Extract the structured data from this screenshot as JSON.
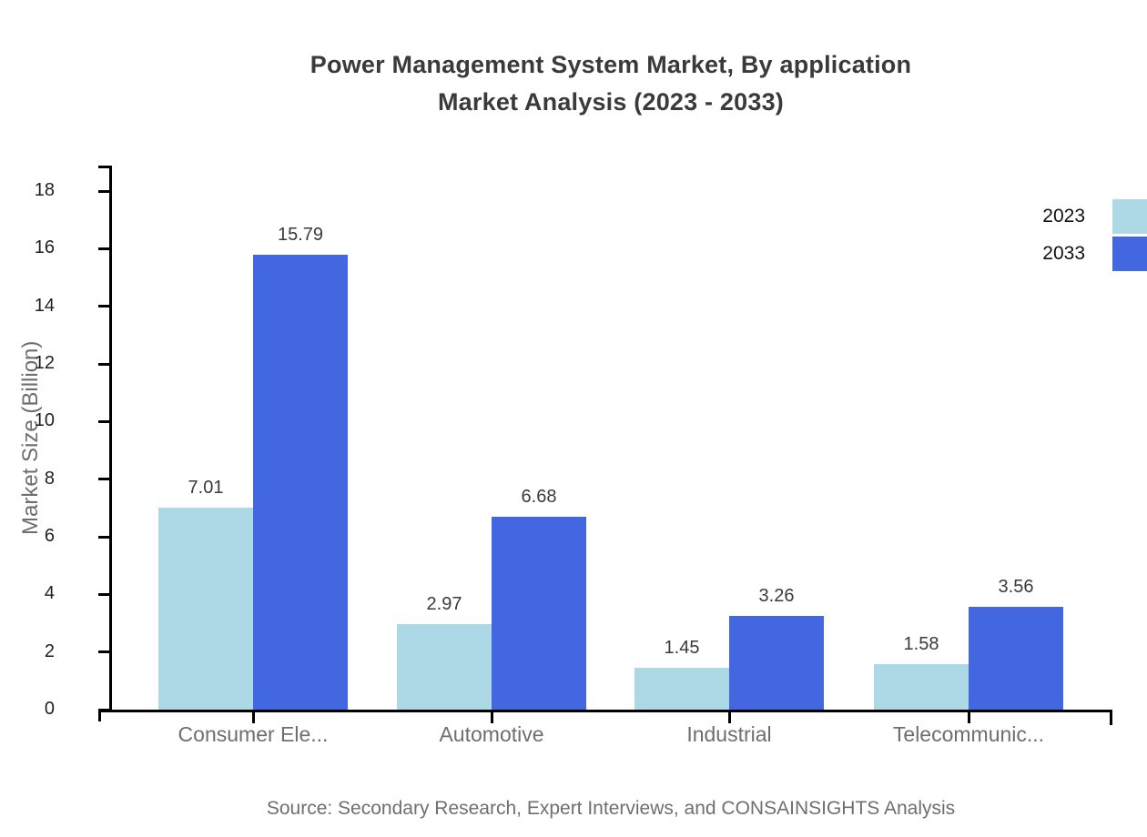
{
  "page": {
    "title_line1": "Power Management System Market, By application",
    "title_line2": "Market Analysis (2023 - 2033)",
    "source": "Source: Secondary Research, Expert Interviews, and CONSAINSIGHTS Analysis"
  },
  "chart_data": {
    "type": "bar",
    "title": "Power Management System Market, By application Market Analysis (2023 - 2033)",
    "categories": [
      "Consumer Ele...",
      "Automotive",
      "Industrial",
      "Telecommunic..."
    ],
    "series": [
      {
        "name": "2023",
        "color": "#add8e6",
        "values": [
          7.01,
          2.97,
          1.45,
          1.58
        ]
      },
      {
        "name": "2033",
        "color": "#4367e0",
        "values": [
          15.79,
          6.68,
          3.26,
          3.56
        ]
      }
    ],
    "xlabel": "",
    "ylabel": "Market Size (Billion)",
    "ylim": [
      0,
      18
    ],
    "yticks": [
      0,
      2,
      4,
      6,
      8,
      10,
      12,
      14,
      16,
      18
    ],
    "grid": false,
    "legend_position": "top-right",
    "value_labels": true,
    "value_label_decimals": 2
  }
}
